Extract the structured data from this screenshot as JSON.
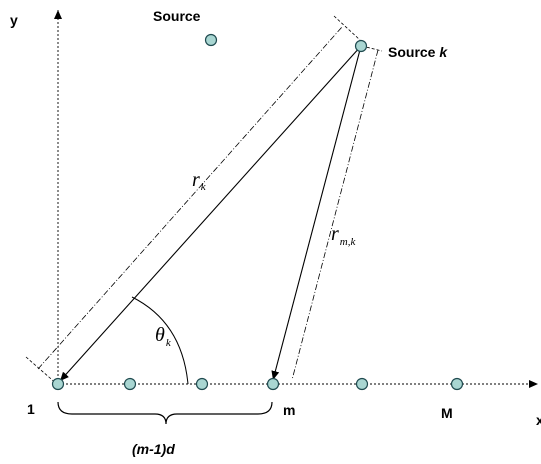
{
  "labels": {
    "y_axis": "y",
    "x_axis": "x",
    "source": "Source",
    "source_k_prefix": "Source ",
    "source_k_suffix": "k",
    "sensor_first": "1",
    "sensor_m": "m",
    "sensor_last": "M",
    "spacing": "(m-1)d",
    "r_k_base": "r",
    "r_k_sub": "k",
    "r_mk_base": "r",
    "r_mk_sub": "m,k",
    "theta_base": "θ",
    "theta_sub": "k"
  },
  "colors": {
    "sensor_fill": "#a9d6d2",
    "sensor_stroke": "#1f4a4f"
  }
}
